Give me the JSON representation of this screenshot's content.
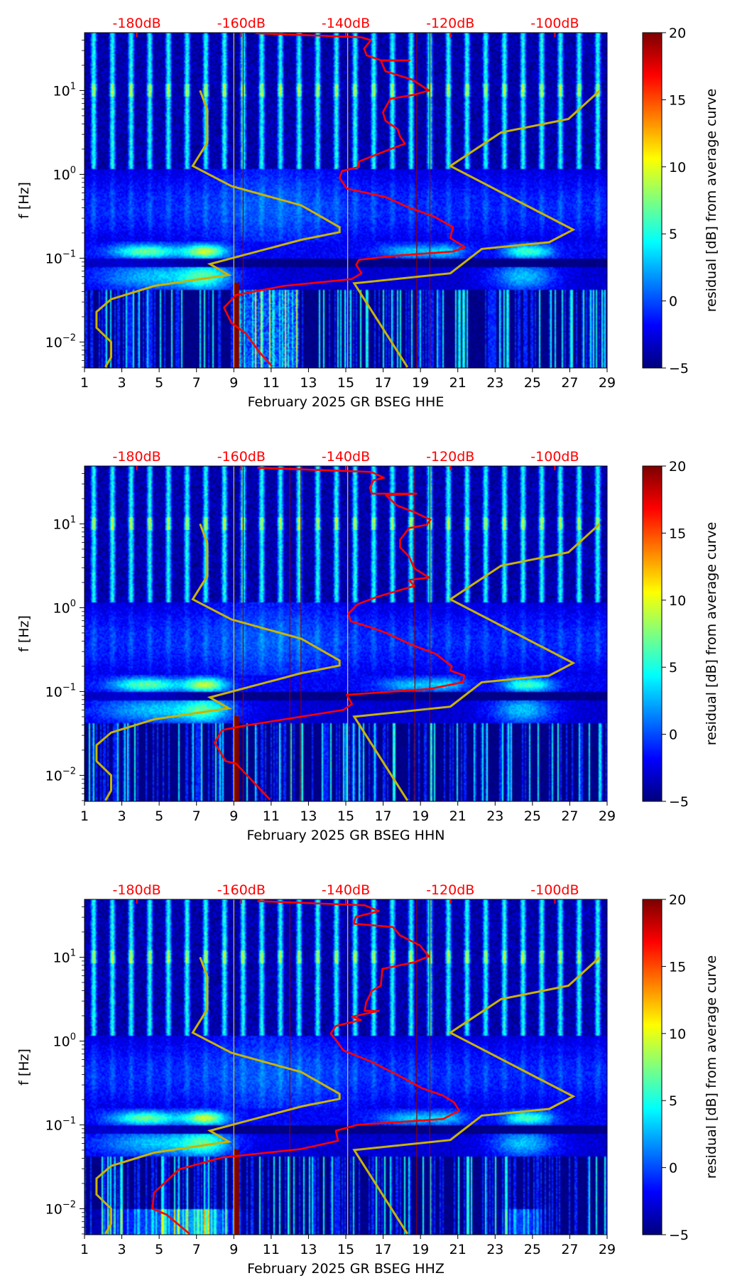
{
  "colors": {
    "psd_curve": "#ff0000",
    "noise_model": "#c8b400",
    "db_axis": "#ff0000",
    "marker_dark_red": "#8b0000",
    "marker_yellow": "#e0d000"
  },
  "colorbar": {
    "label": "residual [dB] from average curve",
    "range": [
      -5,
      20
    ],
    "ticks": [
      "−5",
      "0",
      "5",
      "10",
      "15",
      "20"
    ],
    "colormap": "jet"
  },
  "axes": {
    "ylabel": "f [Hz]",
    "ylim_hz": [
      0.005,
      50
    ],
    "yticks": [
      {
        "base": "10",
        "exp": "1"
      },
      {
        "base": "10",
        "exp": "0"
      },
      {
        "base": "10",
        "exp": "−1"
      },
      {
        "base": "10",
        "exp": "−2"
      }
    ],
    "xlim_days": [
      1,
      29
    ],
    "xticks": [
      "1",
      "3",
      "5",
      "7",
      "9",
      "11",
      "13",
      "15",
      "17",
      "19",
      "21",
      "23",
      "25",
      "27",
      "29"
    ],
    "top_axis_db_range": [
      -190,
      -90
    ],
    "top_ticks": [
      "-180dB",
      "-160dB",
      "-140dB",
      "-120dB",
      "-100dB"
    ]
  },
  "noise_models": {
    "nlnm": [
      [
        -167.9,
        1.0
      ],
      [
        -166.5,
        0.77
      ],
      [
        -166.5,
        0.38
      ],
      [
        -169.3,
        0.1
      ],
      [
        -161.9,
        -0.14
      ],
      [
        -148.5,
        -0.37
      ],
      [
        -141.2,
        -0.63
      ],
      [
        -141.2,
        -0.69
      ],
      [
        -148.5,
        -0.78
      ],
      [
        -166,
        -1.07
      ],
      [
        -162.4,
        -1.2
      ],
      [
        -176.6,
        -1.33
      ],
      [
        -184.9,
        -1.49
      ],
      [
        -187.7,
        -1.64
      ],
      [
        -187.7,
        -1.83
      ],
      [
        -184.9,
        -2.0
      ],
      [
        -184.9,
        -2.18
      ],
      [
        -186,
        -2.3
      ]
    ],
    "nhnm": [
      [
        -91.4,
        1.0
      ],
      [
        -97.4,
        0.66
      ],
      [
        -110.3,
        0.5
      ],
      [
        -120,
        0.1
      ],
      [
        -96.5,
        -0.66
      ],
      [
        -101.1,
        -0.81
      ],
      [
        -114,
        -0.89
      ],
      [
        -120,
        -1.18
      ],
      [
        -138.4,
        -1.3
      ],
      [
        -128.2,
        -2.3
      ]
    ]
  },
  "chart_data": [
    {
      "type": "heatmap",
      "xlabel": "February 2025 GR BSEG  HHE",
      "point_format": "[psd_db, log10_freq_hz]",
      "marker_lines": [
        {
          "day": 9.5,
          "color": "dark_red"
        },
        {
          "day": 18.8,
          "color": "dark_red"
        },
        {
          "day": 19.5,
          "color": "dark_red"
        },
        {
          "day": 9.0,
          "color": "yellow"
        },
        {
          "day": 15.1,
          "color": "yellow"
        }
      ],
      "psd_curve": [
        [
          -157.3,
          1.684
        ],
        [
          -137,
          1.635
        ],
        [
          -135.2,
          1.6
        ],
        [
          -136.5,
          1.5
        ],
        [
          -136,
          1.42
        ],
        [
          -133.3,
          1.36
        ],
        [
          -127.8,
          1.36
        ],
        [
          -133.3,
          1.355
        ],
        [
          -132.4,
          1.23
        ],
        [
          -127.3,
          1.13
        ],
        [
          -124.1,
          1.0
        ],
        [
          -126.9,
          0.95
        ],
        [
          -131.5,
          0.9
        ],
        [
          -132.9,
          0.74
        ],
        [
          -132.4,
          0.64
        ],
        [
          -130.1,
          0.54
        ],
        [
          -129.6,
          0.45
        ],
        [
          -128.7,
          0.365
        ],
        [
          -131.5,
          0.3
        ],
        [
          -134.2,
          0.235
        ],
        [
          -137.5,
          0.153
        ],
        [
          -137.5,
          0.088
        ],
        [
          -140.7,
          0.04
        ],
        [
          -141.2,
          -0.04
        ],
        [
          -139.8,
          -0.17
        ],
        [
          -132.4,
          -0.27
        ],
        [
          -127.8,
          -0.4
        ],
        [
          -123.2,
          -0.5
        ],
        [
          -119.5,
          -0.63
        ],
        [
          -120,
          -0.76
        ],
        [
          -117.2,
          -0.87
        ],
        [
          -119.5,
          -0.92
        ],
        [
          -130.6,
          -0.97
        ],
        [
          -137.5,
          -1.02
        ],
        [
          -138,
          -1.08
        ],
        [
          -137,
          -1.18
        ],
        [
          -138.9,
          -1.25
        ],
        [
          -151.8,
          -1.33
        ],
        [
          -161,
          -1.44
        ],
        [
          -163.3,
          -1.59
        ],
        [
          -161.9,
          -1.77
        ],
        [
          -159.1,
          -1.9
        ],
        [
          -156.4,
          -2.13
        ],
        [
          -154.1,
          -2.29
        ]
      ]
    },
    {
      "type": "heatmap",
      "xlabel": "February 2025 GR BSEG  HHN",
      "point_format": "[psd_db, log10_freq_hz]",
      "marker_lines": [
        {
          "day": 9.5,
          "color": "dark_red"
        },
        {
          "day": 12.0,
          "color": "dark_red"
        },
        {
          "day": 12.6,
          "color": "dark_red"
        },
        {
          "day": 18.7,
          "color": "dark_red"
        },
        {
          "day": 19.5,
          "color": "dark_red"
        },
        {
          "day": 9.0,
          "color": "yellow"
        },
        {
          "day": 15.1,
          "color": "yellow"
        }
      ],
      "psd_curve": [
        [
          -156.9,
          1.67
        ],
        [
          -135.1,
          1.62
        ],
        [
          -132.7,
          1.55
        ],
        [
          -134.7,
          1.52
        ],
        [
          -135.4,
          1.43
        ],
        [
          -135,
          1.36
        ],
        [
          -126.5,
          1.36
        ],
        [
          -132.3,
          1.34
        ],
        [
          -130.2,
          1.22
        ],
        [
          -126.9,
          1.14
        ],
        [
          -123.8,
          1.05
        ],
        [
          -124.5,
          0.99
        ],
        [
          -127.9,
          0.95
        ],
        [
          -129.6,
          0.81
        ],
        [
          -129.6,
          0.72
        ],
        [
          -127.9,
          0.61
        ],
        [
          -126.9,
          0.47
        ],
        [
          -124.1,
          0.36
        ],
        [
          -127.9,
          0.33
        ],
        [
          -126.9,
          0.26
        ],
        [
          -134,
          0.13
        ],
        [
          -137.8,
          0.04
        ],
        [
          -139.5,
          -0.07
        ],
        [
          -139.1,
          -0.16
        ],
        [
          -135,
          -0.24
        ],
        [
          -132.3,
          -0.3
        ],
        [
          -127.5,
          -0.44
        ],
        [
          -122.8,
          -0.55
        ],
        [
          -119.7,
          -0.7
        ],
        [
          -120,
          -0.75
        ],
        [
          -117.3,
          -0.81
        ],
        [
          -117.6,
          -0.89
        ],
        [
          -124.1,
          -0.97
        ],
        [
          -139.8,
          -1.04
        ],
        [
          -138.8,
          -1.15
        ],
        [
          -140.5,
          -1.22
        ],
        [
          -159.6,
          -1.41
        ],
        [
          -163.7,
          -1.46
        ],
        [
          -165.1,
          -1.61
        ],
        [
          -163,
          -1.83
        ],
        [
          -161,
          -1.86
        ],
        [
          -154.5,
          -2.29
        ]
      ]
    },
    {
      "type": "heatmap",
      "xlabel": "February 2025 GR BSEG  HHZ",
      "point_format": "[psd_db, log10_freq_hz]",
      "marker_lines": [
        {
          "day": 12.0,
          "color": "dark_red"
        },
        {
          "day": 18.8,
          "color": "dark_red"
        },
        {
          "day": 19.5,
          "color": "dark_red"
        },
        {
          "day": 9.0,
          "color": "yellow"
        },
        {
          "day": 15.1,
          "color": "yellow"
        }
      ],
      "psd_curve": [
        [
          -156.9,
          1.67
        ],
        [
          -136.4,
          1.62
        ],
        [
          -133.7,
          1.55
        ],
        [
          -138.1,
          1.48
        ],
        [
          -138.5,
          1.4
        ],
        [
          -131,
          1.36
        ],
        [
          -129.6,
          1.26
        ],
        [
          -125.8,
          1.14
        ],
        [
          -124.1,
          1.01
        ],
        [
          -126.9,
          0.94
        ],
        [
          -133,
          0.86
        ],
        [
          -133.3,
          0.66
        ],
        [
          -135,
          0.6
        ],
        [
          -136.1,
          0.46
        ],
        [
          -136.4,
          0.36
        ],
        [
          -133.7,
          0.36
        ],
        [
          -138.8,
          0.29
        ],
        [
          -137.1,
          0.25
        ],
        [
          -141.9,
          0.18
        ],
        [
          -142.9,
          0.09
        ],
        [
          -141.5,
          -0.02
        ],
        [
          -140.5,
          -0.11
        ],
        [
          -135,
          -0.25
        ],
        [
          -129.6,
          -0.42
        ],
        [
          -125.5,
          -0.56
        ],
        [
          -121.4,
          -0.65
        ],
        [
          -119.3,
          -0.73
        ],
        [
          -118.3,
          -0.83
        ],
        [
          -121.4,
          -0.93
        ],
        [
          -137.8,
          -1.0
        ],
        [
          -141.9,
          -1.07
        ],
        [
          -141.5,
          -1.19
        ],
        [
          -148.7,
          -1.29
        ],
        [
          -163.7,
          -1.39
        ],
        [
          -171.9,
          -1.53
        ],
        [
          -176.7,
          -1.81
        ],
        [
          -177,
          -2.0
        ],
        [
          -174.3,
          -2.07
        ],
        [
          -169.9,
          -2.3
        ]
      ]
    }
  ]
}
